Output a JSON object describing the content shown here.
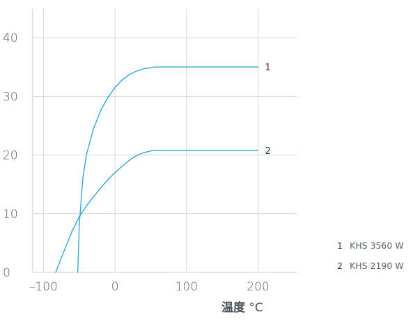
{
  "chart_data": {
    "type": "line",
    "title": "",
    "xlabel_bold": "温度",
    "xlabel_unit": "°C",
    "ylabel": "",
    "xlim": [
      -115,
      255
    ],
    "ylim": [
      0,
      45
    ],
    "xticks": [
      -100,
      0,
      100,
      200
    ],
    "xtick_labels": [
      "–100",
      "0",
      "100",
      "200"
    ],
    "yticks": [
      0,
      10,
      20,
      30,
      40
    ],
    "ytick_labels": [
      "0",
      "10",
      "20",
      "30",
      "40"
    ],
    "grid": true,
    "line_color": "#1ea7d6",
    "series": [
      {
        "key": "1",
        "name": "KHS 3560 W",
        "x": [
          -52,
          -50,
          -45,
          -40,
          -30,
          -20,
          -10,
          0,
          10,
          20,
          30,
          40,
          50,
          55,
          200
        ],
        "y": [
          0,
          8,
          16,
          20,
          24.5,
          27.6,
          29.8,
          31.5,
          32.8,
          33.7,
          34.3,
          34.7,
          34.9,
          35,
          35
        ]
      },
      {
        "key": "2",
        "name": "KHS 2190 W",
        "x": [
          -83,
          -70,
          -60,
          -50,
          -40,
          -30,
          -20,
          -10,
          0,
          10,
          20,
          30,
          40,
          50,
          55,
          200
        ],
        "y": [
          0,
          4,
          7,
          9.5,
          11.3,
          12.9,
          14.4,
          15.8,
          17,
          18.1,
          19.1,
          19.9,
          20.4,
          20.7,
          20.8,
          20.8
        ]
      }
    ]
  }
}
